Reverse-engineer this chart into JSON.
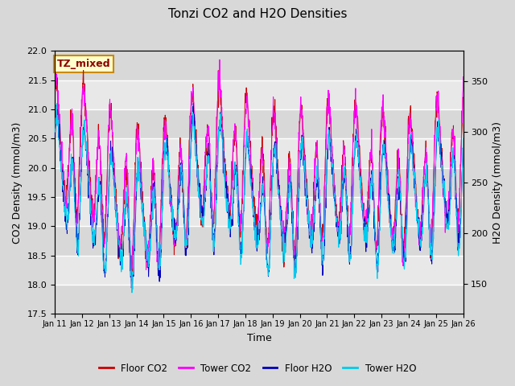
{
  "title": "Tonzi CO2 and H2O Densities",
  "xlabel": "Time",
  "ylabel_left": "CO2 Density (mmol/m3)",
  "ylabel_right": "H2O Density (mmol/m3)",
  "annotation_text": "TZ_mixed",
  "annotation_bg": "#ffffcc",
  "annotation_border": "#cc8800",
  "co2_ylim": [
    17.5,
    22.0
  ],
  "h2o_ylim": [
    120,
    380
  ],
  "x_tick_labels": [
    "Jan 11",
    "Jan 12",
    "Jan 13",
    "Jan 14",
    "Jan 15",
    "Jan 16",
    "Jan 17",
    "Jan 18",
    "Jan 19",
    "Jan 20",
    "Jan 21",
    "Jan 22",
    "Jan 23",
    "Jan 24",
    "Jan 25",
    "Jan 26"
  ],
  "colors": {
    "floor_co2": "#cc0000",
    "tower_co2": "#ff00ff",
    "floor_h2o": "#0000bb",
    "tower_h2o": "#00ccee"
  },
  "legend_labels": [
    "Floor CO2",
    "Tower CO2",
    "Floor H2O",
    "Tower H2O"
  ],
  "fig_bg": "#d8d8d8",
  "plot_bg": "#e0e0e0",
  "grid_color": "#ffffff",
  "seed": 12345,
  "n_points": 1500,
  "n_days": 15
}
